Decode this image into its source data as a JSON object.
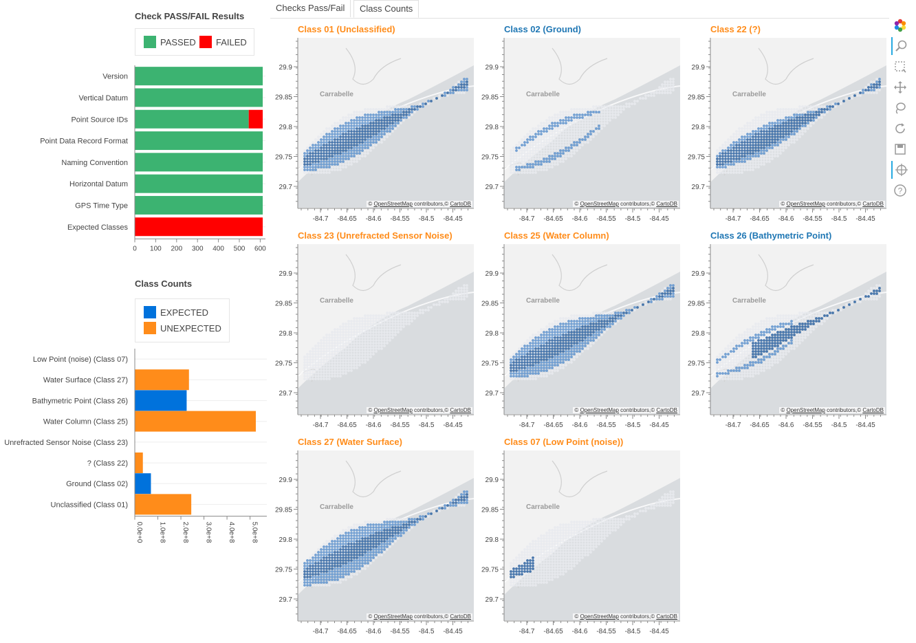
{
  "tabs": [
    {
      "label": "Checks Pass/Fail"
    },
    {
      "label": "Class Counts"
    }
  ],
  "checks_panel": {
    "title": "Check PASS/FAIL Results",
    "legend": [
      {
        "label": "PASSED",
        "color": "#3cb371"
      },
      {
        "label": "FAILED",
        "color": "#ff0000"
      }
    ],
    "chart_data": {
      "type": "bar",
      "orientation": "horizontal",
      "stacked": true,
      "categories": [
        "Version",
        "Vertical Datum",
        "Point Source IDs",
        "Point Data Record Format",
        "Naming Convention",
        "Horizontal Datum",
        "GPS Time Type",
        "Expected Classes"
      ],
      "series": [
        {
          "name": "PASSED",
          "color": "#3cb371",
          "values": [
            612,
            612,
            545,
            612,
            612,
            612,
            612,
            0
          ]
        },
        {
          "name": "FAILED",
          "color": "#ff0000",
          "values": [
            0,
            0,
            67,
            0,
            0,
            0,
            0,
            612
          ]
        }
      ],
      "xticks": [
        "0",
        "100",
        "200",
        "300",
        "400",
        "500",
        "600"
      ],
      "xlim": [
        0,
        625
      ]
    }
  },
  "counts_panel": {
    "title": "Class Counts",
    "legend": [
      {
        "label": "EXPECTED",
        "color": "#0072dc"
      },
      {
        "label": "UNEXPECTED",
        "color": "#ff8c1a"
      }
    ],
    "chart_data": {
      "type": "bar",
      "orientation": "horizontal",
      "categories": [
        "Low Point (noise) (Class 07)",
        "Water Surface (Class 27)",
        "Bathymetric Point (Class 26)",
        "Water Column (Class 25)",
        "Unrefracted Sensor Noise (Class 23)",
        "? (Class 22)",
        "Ground (Class 02)",
        "Unclassified (Class 01)"
      ],
      "values": [
        0,
        235000000,
        225000000,
        525000000,
        0,
        35000000,
        70000000,
        245000000
      ],
      "colors": [
        "#ff8c1a",
        "#ff8c1a",
        "#0072dc",
        "#ff8c1a",
        "#ff8c1a",
        "#ff8c1a",
        "#0072dc",
        "#ff8c1a"
      ],
      "xticks": [
        "0.0e+0",
        "1.0e+8",
        "2.0e+8",
        "3.0e+8",
        "4.0e+8",
        "5.0e+8"
      ],
      "xlim": [
        0,
        525000000
      ]
    }
  },
  "maps": [
    {
      "title": "Class 01 (Unclassified)",
      "color": "#ff8c1a"
    },
    {
      "title": "Class 02 (Ground)",
      "color": "#1f77b4"
    },
    {
      "title": "Class 22 (?)",
      "color": "#ff8c1a"
    },
    {
      "title": "Class 23 (Unrefracted Sensor Noise)",
      "color": "#ff8c1a"
    },
    {
      "title": "Class 25 (Water Column)",
      "color": "#ff8c1a"
    },
    {
      "title": "Class 26 (Bathymetric Point)",
      "color": "#1f77b4"
    },
    {
      "title": "Class 27 (Water Surface)",
      "color": "#ff8c1a"
    },
    {
      "title": "Class 07 (Low Point (noise))",
      "color": "#ff8c1a"
    }
  ],
  "map_common": {
    "place_label": "Carrabelle",
    "attribution_osm": "OpenStreetMap",
    "attribution_mid": " contributors,© ",
    "attribution_carto": "CartoDB",
    "attribution_prefix": "© ",
    "y_ticks": [
      "29.9",
      "29.85",
      "29.8",
      "29.75",
      "29.7"
    ],
    "x_ticks": [
      "-84.7",
      "-84.65",
      "-84.6",
      "-84.55",
      "-84.5",
      "-84.45"
    ]
  },
  "toolbar": [
    {
      "name": "bokeh-logo-icon"
    },
    {
      "name": "wheel-zoom-icon"
    },
    {
      "name": "box-select-icon"
    },
    {
      "name": "pan-icon"
    },
    {
      "name": "lasso-icon"
    },
    {
      "name": "reset-icon"
    },
    {
      "name": "save-icon"
    },
    {
      "name": "crosshair-icon"
    },
    {
      "name": "help-icon"
    }
  ]
}
